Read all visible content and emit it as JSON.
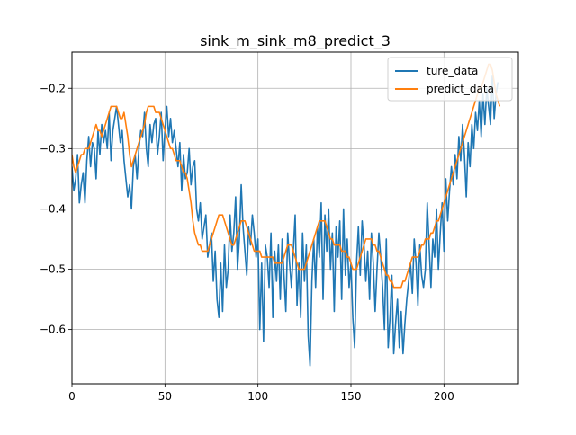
{
  "chart_data": {
    "type": "line",
    "title": "sink_m_sink_m8_predict_3",
    "xlabel": "",
    "ylabel": "",
    "xlim": [
      0,
      240
    ],
    "ylim": [
      -0.69,
      -0.14
    ],
    "x_ticks": [
      0,
      50,
      100,
      150,
      200
    ],
    "y_ticks": [
      -0.6,
      -0.5,
      -0.4,
      -0.3,
      -0.2
    ],
    "x_tick_labels": [
      "0",
      "50",
      "100",
      "150",
      "200"
    ],
    "y_tick_labels": [
      "−0.6",
      "−0.5",
      "−0.4",
      "−0.3",
      "−0.2"
    ],
    "grid": true,
    "legend_position": "top-right",
    "series": [
      {
        "name": "ture_data",
        "color": "#1f77b4",
        "values": [
          -0.33,
          -0.37,
          -0.35,
          -0.31,
          -0.39,
          -0.36,
          -0.34,
          -0.39,
          -0.32,
          -0.28,
          -0.33,
          -0.29,
          -0.3,
          -0.35,
          -0.27,
          -0.31,
          -0.26,
          -0.29,
          -0.27,
          -0.3,
          -0.24,
          -0.32,
          -0.27,
          -0.25,
          -0.23,
          -0.26,
          -0.29,
          -0.27,
          -0.32,
          -0.35,
          -0.38,
          -0.36,
          -0.4,
          -0.33,
          -0.31,
          -0.35,
          -0.3,
          -0.27,
          -0.28,
          -0.24,
          -0.3,
          -0.33,
          -0.26,
          -0.29,
          -0.26,
          -0.25,
          -0.31,
          -0.28,
          -0.24,
          -0.32,
          -0.27,
          -0.23,
          -0.28,
          -0.25,
          -0.29,
          -0.27,
          -0.3,
          -0.33,
          -0.29,
          -0.37,
          -0.31,
          -0.35,
          -0.34,
          -0.3,
          -0.36,
          -0.33,
          -0.32,
          -0.4,
          -0.42,
          -0.39,
          -0.45,
          -0.43,
          -0.41,
          -0.48,
          -0.46,
          -0.44,
          -0.52,
          -0.47,
          -0.55,
          -0.58,
          -0.49,
          -0.57,
          -0.46,
          -0.53,
          -0.5,
          -0.41,
          -0.47,
          -0.44,
          -0.38,
          -0.5,
          -0.45,
          -0.36,
          -0.43,
          -0.47,
          -0.51,
          -0.43,
          -0.46,
          -0.41,
          -0.44,
          -0.48,
          -0.45,
          -0.6,
          -0.49,
          -0.62,
          -0.46,
          -0.48,
          -0.53,
          -0.44,
          -0.58,
          -0.47,
          -0.52,
          -0.46,
          -0.55,
          -0.45,
          -0.51,
          -0.57,
          -0.44,
          -0.49,
          -0.53,
          -0.47,
          -0.41,
          -0.56,
          -0.49,
          -0.58,
          -0.44,
          -0.52,
          -0.46,
          -0.61,
          -0.66,
          -0.52,
          -0.45,
          -0.53,
          -0.43,
          -0.48,
          -0.39,
          -0.55,
          -0.41,
          -0.47,
          -0.4,
          -0.5,
          -0.44,
          -0.57,
          -0.43,
          -0.48,
          -0.42,
          -0.55,
          -0.4,
          -0.51,
          -0.45,
          -0.53,
          -0.49,
          -0.58,
          -0.63,
          -0.49,
          -0.43,
          -0.51,
          -0.42,
          -0.46,
          -0.52,
          -0.47,
          -0.55,
          -0.44,
          -0.49,
          -0.57,
          -0.5,
          -0.44,
          -0.48,
          -0.53,
          -0.6,
          -0.45,
          -0.63,
          -0.58,
          -0.51,
          -0.64,
          -0.59,
          -0.55,
          -0.63,
          -0.57,
          -0.64,
          -0.59,
          -0.55,
          -0.52,
          -0.49,
          -0.54,
          -0.45,
          -0.49,
          -0.56,
          -0.46,
          -0.51,
          -0.53,
          -0.5,
          -0.39,
          -0.46,
          -0.53,
          -0.45,
          -0.48,
          -0.4,
          -0.5,
          -0.44,
          -0.39,
          -0.47,
          -0.35,
          -0.42,
          -0.37,
          -0.33,
          -0.36,
          -0.31,
          -0.35,
          -0.28,
          -0.32,
          -0.26,
          -0.31,
          -0.38,
          -0.29,
          -0.33,
          -0.26,
          -0.3,
          -0.24,
          -0.27,
          -0.22,
          -0.28,
          -0.21,
          -0.26,
          -0.2,
          -0.23,
          -0.26,
          -0.18,
          -0.25,
          -0.21,
          -0.19
        ]
      },
      {
        "name": "predict_data",
        "color": "#ff7f0e",
        "values": [
          -0.31,
          -0.33,
          -0.34,
          -0.33,
          -0.32,
          -0.31,
          -0.31,
          -0.3,
          -0.3,
          -0.3,
          -0.29,
          -0.28,
          -0.27,
          -0.26,
          -0.27,
          -0.27,
          -0.28,
          -0.27,
          -0.26,
          -0.25,
          -0.24,
          -0.23,
          -0.23,
          -0.23,
          -0.23,
          -0.24,
          -0.25,
          -0.25,
          -0.24,
          -0.26,
          -0.28,
          -0.31,
          -0.33,
          -0.32,
          -0.31,
          -0.3,
          -0.29,
          -0.28,
          -0.27,
          -0.26,
          -0.24,
          -0.23,
          -0.23,
          -0.23,
          -0.23,
          -0.24,
          -0.24,
          -0.24,
          -0.25,
          -0.26,
          -0.27,
          -0.28,
          -0.29,
          -0.3,
          -0.3,
          -0.31,
          -0.32,
          -0.32,
          -0.32,
          -0.33,
          -0.34,
          -0.34,
          -0.35,
          -0.37,
          -0.39,
          -0.42,
          -0.44,
          -0.45,
          -0.46,
          -0.46,
          -0.47,
          -0.47,
          -0.47,
          -0.47,
          -0.46,
          -0.45,
          -0.44,
          -0.43,
          -0.42,
          -0.41,
          -0.41,
          -0.41,
          -0.42,
          -0.43,
          -0.44,
          -0.45,
          -0.46,
          -0.46,
          -0.45,
          -0.44,
          -0.43,
          -0.42,
          -0.42,
          -0.42,
          -0.43,
          -0.44,
          -0.45,
          -0.46,
          -0.47,
          -0.47,
          -0.47,
          -0.47,
          -0.48,
          -0.48,
          -0.48,
          -0.48,
          -0.48,
          -0.48,
          -0.48,
          -0.49,
          -0.49,
          -0.49,
          -0.49,
          -0.49,
          -0.48,
          -0.47,
          -0.46,
          -0.46,
          -0.46,
          -0.47,
          -0.48,
          -0.49,
          -0.5,
          -0.5,
          -0.5,
          -0.5,
          -0.49,
          -0.48,
          -0.47,
          -0.46,
          -0.45,
          -0.44,
          -0.43,
          -0.42,
          -0.42,
          -0.42,
          -0.42,
          -0.43,
          -0.44,
          -0.45,
          -0.45,
          -0.46,
          -0.46,
          -0.46,
          -0.46,
          -0.47,
          -0.47,
          -0.47,
          -0.48,
          -0.48,
          -0.49,
          -0.5,
          -0.5,
          -0.5,
          -0.49,
          -0.48,
          -0.47,
          -0.46,
          -0.45,
          -0.45,
          -0.45,
          -0.45,
          -0.46,
          -0.46,
          -0.47,
          -0.47,
          -0.48,
          -0.49,
          -0.5,
          -0.51,
          -0.51,
          -0.52,
          -0.52,
          -0.53,
          -0.53,
          -0.53,
          -0.53,
          -0.53,
          -0.52,
          -0.52,
          -0.51,
          -0.5,
          -0.49,
          -0.48,
          -0.48,
          -0.48,
          -0.48,
          -0.47,
          -0.46,
          -0.46,
          -0.45,
          -0.45,
          -0.45,
          -0.44,
          -0.44,
          -0.43,
          -0.42,
          -0.42,
          -0.41,
          -0.4,
          -0.39,
          -0.38,
          -0.37,
          -0.36,
          -0.35,
          -0.34,
          -0.33,
          -0.32,
          -0.31,
          -0.3,
          -0.29,
          -0.28,
          -0.27,
          -0.26,
          -0.25,
          -0.24,
          -0.23,
          -0.22,
          -0.21,
          -0.2,
          -0.2,
          -0.19,
          -0.18,
          -0.17,
          -0.16,
          -0.16,
          -0.17,
          -0.19,
          -0.21,
          -0.22,
          -0.23
        ]
      }
    ]
  }
}
